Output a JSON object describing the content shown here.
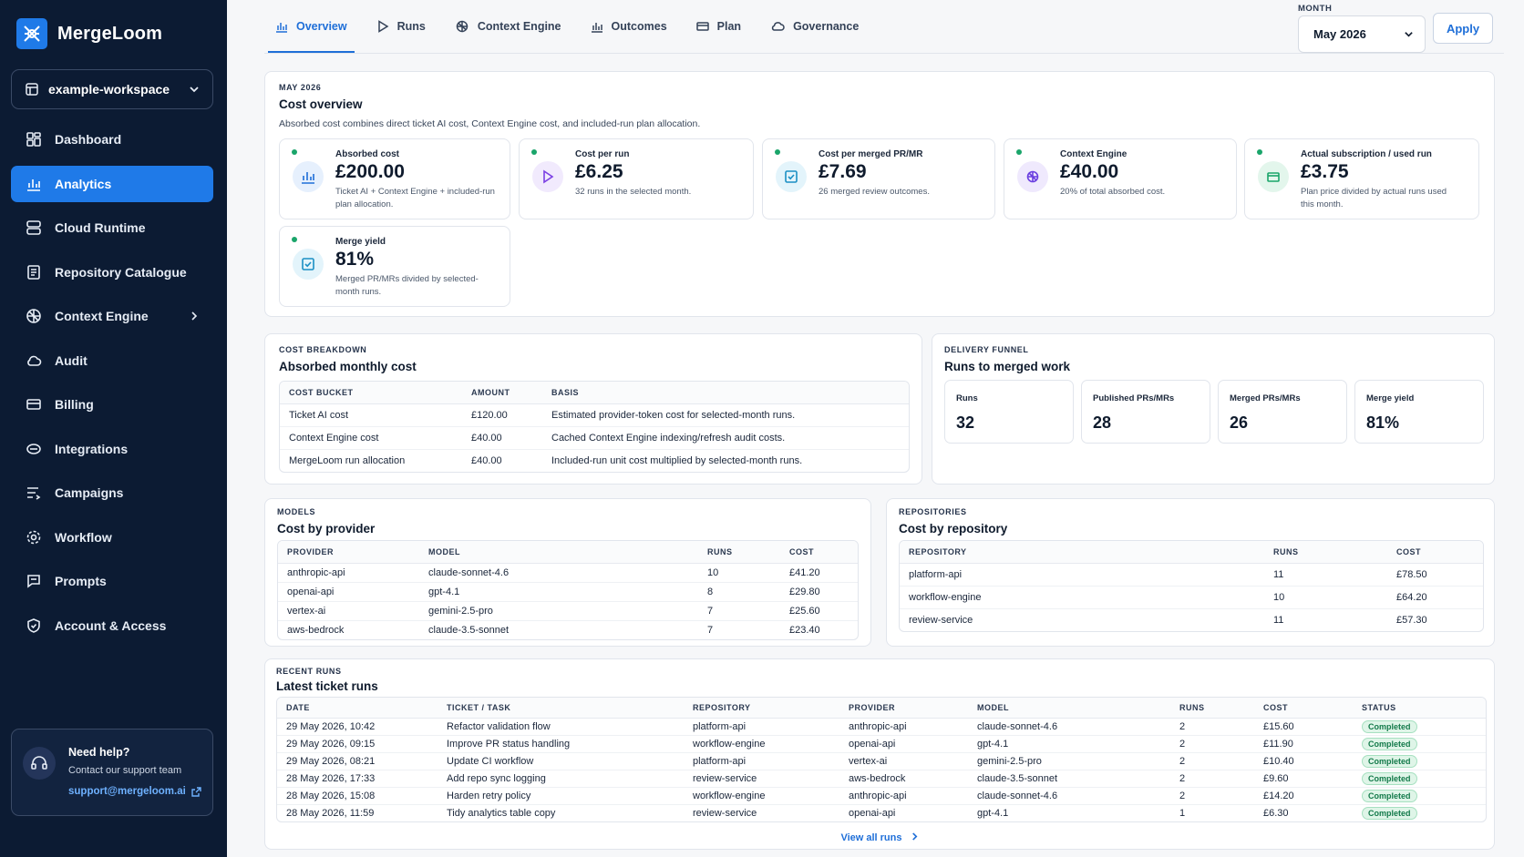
{
  "app": {
    "name": "MergeLoom"
  },
  "workspace": {
    "name": "example-workspace"
  },
  "nav": [
    {
      "label": "Dashboard",
      "icon": "dashboard-icon"
    },
    {
      "label": "Analytics",
      "icon": "bar-chart-icon",
      "active": true
    },
    {
      "label": "Cloud Runtime",
      "icon": "server-icon"
    },
    {
      "label": "Repository Catalogue",
      "icon": "catalogue-icon"
    },
    {
      "label": "Context Engine",
      "icon": "brain-icon",
      "chevron": true
    },
    {
      "label": "Audit",
      "icon": "cloud-icon"
    },
    {
      "label": "Billing",
      "icon": "card-icon"
    },
    {
      "label": "Integrations",
      "icon": "link-icon"
    },
    {
      "label": "Campaigns",
      "icon": "list-icon"
    },
    {
      "label": "Workflow",
      "icon": "gear-icon"
    },
    {
      "label": "Prompts",
      "icon": "chat-icon"
    },
    {
      "label": "Account & Access",
      "icon": "shield-icon"
    }
  ],
  "help": {
    "title": "Need help?",
    "subtitle": "Contact our support team",
    "email": "support@mergeloom.ai"
  },
  "tabs": [
    {
      "label": "Overview",
      "active": true
    },
    {
      "label": "Runs"
    },
    {
      "label": "Context Engine"
    },
    {
      "label": "Outcomes"
    },
    {
      "label": "Plan"
    },
    {
      "label": "Governance"
    }
  ],
  "month": {
    "label": "MONTH",
    "value": "May 2026",
    "apply_label": "Apply"
  },
  "overview": {
    "eyebrow": "MAY 2026",
    "title": "Cost overview",
    "description": "Absorbed cost combines direct ticket AI cost, Context Engine cost, and included-run plan allocation.",
    "kpis": [
      {
        "label": "Absorbed cost",
        "value": "£200.00",
        "note": "Ticket AI + Context Engine + included-run plan allocation.",
        "icon": "bar-chart-icon"
      },
      {
        "label": "Cost per run",
        "value": "£6.25",
        "note": "32 runs in the selected month.",
        "icon": "play-icon"
      },
      {
        "label": "Cost per merged PR/MR",
        "value": "£7.69",
        "note": "26 merged review outcomes.",
        "icon": "check-icon"
      },
      {
        "label": "Context Engine",
        "value": "£40.00",
        "note": "20% of total absorbed cost.",
        "icon": "brain-icon"
      },
      {
        "label": "Actual subscription / used run",
        "value": "£3.75",
        "note": "Plan price divided by actual runs used this month.",
        "icon": "card-icon"
      },
      {
        "label": "Merge yield",
        "value": "81%",
        "note": "Merged PR/MRs divided by selected-month runs.",
        "icon": "check-icon"
      }
    ]
  },
  "breakdown": {
    "eyebrow": "COST BREAKDOWN",
    "title": "Absorbed monthly cost",
    "headers": [
      "COST BUCKET",
      "AMOUNT",
      "BASIS"
    ],
    "rows": [
      [
        "Ticket AI cost",
        "£120.00",
        "Estimated provider-token cost for selected-month runs."
      ],
      [
        "Context Engine cost",
        "£40.00",
        "Cached Context Engine indexing/refresh audit costs."
      ],
      [
        "MergeLoom run allocation",
        "£40.00",
        "Included-run unit cost multiplied by selected-month runs."
      ]
    ]
  },
  "funnel": {
    "eyebrow": "DELIVERY FUNNEL",
    "title": "Runs to merged work",
    "items": [
      {
        "label": "Runs",
        "value": "32"
      },
      {
        "label": "Published PRs/MRs",
        "value": "28"
      },
      {
        "label": "Merged PRs/MRs",
        "value": "26"
      },
      {
        "label": "Merge yield",
        "value": "81%"
      }
    ]
  },
  "models": {
    "eyebrow": "MODELS",
    "title": "Cost by provider",
    "headers": [
      "PROVIDER",
      "MODEL",
      "RUNS",
      "COST"
    ],
    "rows": [
      [
        "anthropic-api",
        "claude-sonnet-4.6",
        "10",
        "£41.20"
      ],
      [
        "openai-api",
        "gpt-4.1",
        "8",
        "£29.80"
      ],
      [
        "vertex-ai",
        "gemini-2.5-pro",
        "7",
        "£25.60"
      ],
      [
        "aws-bedrock",
        "claude-3.5-sonnet",
        "7",
        "£23.40"
      ]
    ]
  },
  "repositories": {
    "eyebrow": "REPOSITORIES",
    "title": "Cost by repository",
    "headers": [
      "REPOSITORY",
      "RUNS",
      "COST"
    ],
    "rows": [
      [
        "platform-api",
        "11",
        "£78.50"
      ],
      [
        "workflow-engine",
        "10",
        "£64.20"
      ],
      [
        "review-service",
        "11",
        "£57.30"
      ]
    ]
  },
  "recent": {
    "eyebrow": "RECENT RUNS",
    "title": "Latest ticket runs",
    "headers": [
      "DATE",
      "TICKET / TASK",
      "REPOSITORY",
      "PROVIDER",
      "MODEL",
      "RUNS",
      "COST",
      "STATUS"
    ],
    "rows": [
      [
        "29 May 2026, 10:42",
        "Refactor validation flow",
        "platform-api",
        "anthropic-api",
        "claude-sonnet-4.6",
        "2",
        "£15.60",
        "Completed"
      ],
      [
        "29 May 2026, 09:15",
        "Improve PR status handling",
        "workflow-engine",
        "openai-api",
        "gpt-4.1",
        "2",
        "£11.90",
        "Completed"
      ],
      [
        "29 May 2026, 08:21",
        "Update CI workflow",
        "platform-api",
        "vertex-ai",
        "gemini-2.5-pro",
        "2",
        "£10.40",
        "Completed"
      ],
      [
        "28 May 2026, 17:33",
        "Add repo sync logging",
        "review-service",
        "aws-bedrock",
        "claude-3.5-sonnet",
        "2",
        "£9.60",
        "Completed"
      ],
      [
        "28 May 2026, 15:08",
        "Harden retry policy",
        "workflow-engine",
        "anthropic-api",
        "claude-sonnet-4.6",
        "2",
        "£14.20",
        "Completed"
      ],
      [
        "28 May 2026, 11:59",
        "Tidy analytics table copy",
        "review-service",
        "openai-api",
        "gpt-4.1",
        "1",
        "£6.30",
        "Completed"
      ]
    ],
    "view_all_label": "View all runs"
  },
  "colors": {
    "sidebar": "#0c1b33",
    "accent": "#1f7ae8",
    "success": "#1aa56a"
  }
}
